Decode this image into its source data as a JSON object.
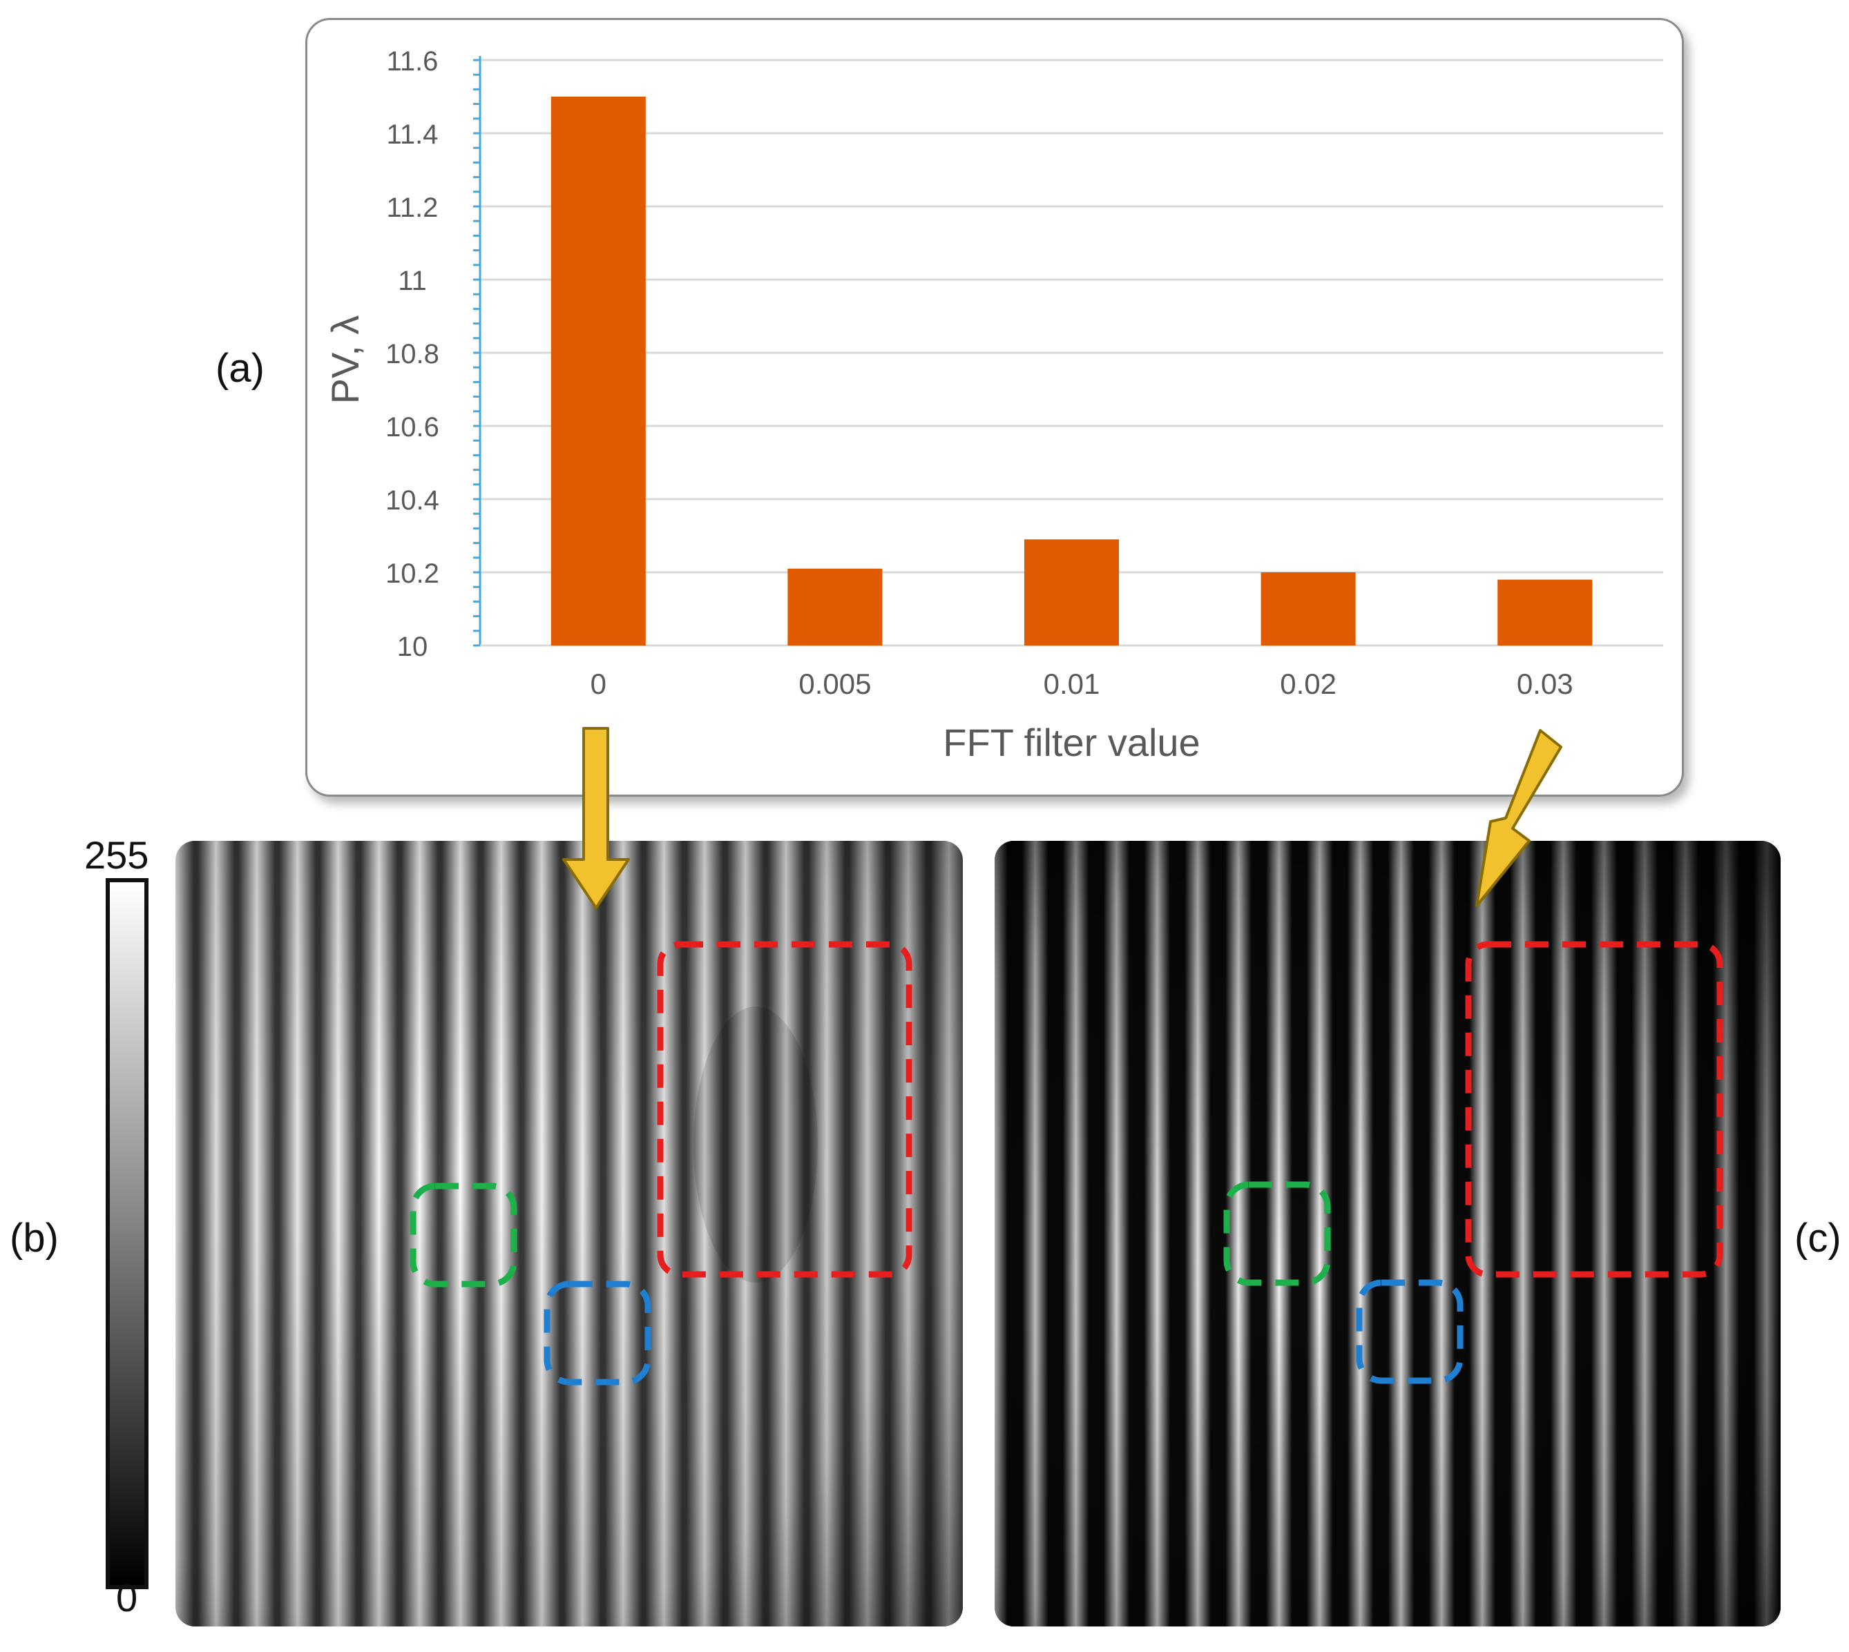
{
  "panel_labels": {
    "a": "(a)",
    "b": "(b)",
    "c": "(c)"
  },
  "colorbar": {
    "max_label": "255",
    "min_label": "0"
  },
  "colors": {
    "bar": "#E05A00",
    "axis": "#45A8E0",
    "grid": "#D9D9D9",
    "arrow": "#F2C12E",
    "red_box": "#E61E1E",
    "green_box": "#1DB04B",
    "blue_box": "#1F7FD1"
  },
  "chart_data": {
    "type": "bar",
    "categories": [
      "0",
      "0.005",
      "0.01",
      "0.02",
      "0.03"
    ],
    "values": [
      11.5,
      10.21,
      10.29,
      10.2,
      10.18
    ],
    "title": "",
    "xlabel": "FFT filter value",
    "ylabel": "PV, λ",
    "ylim": [
      10,
      11.6
    ],
    "yticks": [
      "10",
      "10.2",
      "10.4",
      "10.6",
      "10.8",
      "11",
      "11.2",
      "11.4",
      "11.6"
    ],
    "grid": true,
    "legend": "none"
  }
}
